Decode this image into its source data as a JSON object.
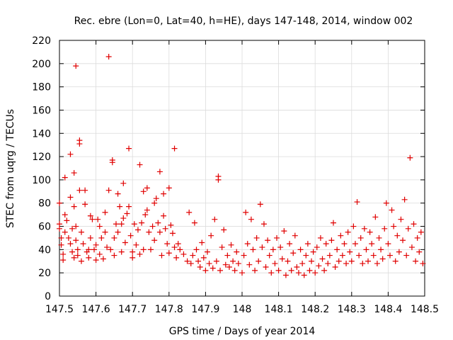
{
  "chart_data": {
    "type": "scatter",
    "title": "Rec. ebre (Lon=0, Lat=40, h=HE), days 147-148, 2014, window 002",
    "xlabel": "GPS time / Days of year 2014",
    "ylabel": "STEC from uqrg / TECUs",
    "xlim": [
      147.5,
      148.5
    ],
    "ylim": [
      0,
      220
    ],
    "xticks": [
      "147.5",
      "147.6",
      "147.7",
      "147.8",
      "147.9",
      "148",
      "148.1",
      "148.2",
      "148.3",
      "148.4",
      "148.5"
    ],
    "yticks": [
      "0",
      "20",
      "40",
      "60",
      "80",
      "100",
      "120",
      "140",
      "160",
      "180",
      "200",
      "220"
    ],
    "marker": "+",
    "color": "#e00000",
    "series": [
      {
        "name": "STEC",
        "points": [
          [
            147.5,
            80
          ],
          [
            147.5,
            58
          ],
          [
            147.5,
            62
          ],
          [
            147.505,
            50
          ],
          [
            147.505,
            44
          ],
          [
            147.51,
            31
          ],
          [
            147.51,
            36
          ],
          [
            147.515,
            55
          ],
          [
            147.515,
            102
          ],
          [
            147.515,
            70
          ],
          [
            147.52,
            65
          ],
          [
            147.525,
            50
          ],
          [
            147.53,
            122
          ],
          [
            147.53,
            85
          ],
          [
            147.53,
            45
          ],
          [
            147.535,
            38
          ],
          [
            147.535,
            58
          ],
          [
            147.54,
            33
          ],
          [
            147.54,
            106
          ],
          [
            147.54,
            77
          ],
          [
            147.545,
            198
          ],
          [
            147.545,
            60
          ],
          [
            147.545,
            48
          ],
          [
            147.55,
            40
          ],
          [
            147.55,
            35
          ],
          [
            147.555,
            134
          ],
          [
            147.555,
            131
          ],
          [
            147.555,
            91
          ],
          [
            147.56,
            30
          ],
          [
            147.56,
            55
          ],
          [
            147.565,
            45
          ],
          [
            147.57,
            91
          ],
          [
            147.57,
            79
          ],
          [
            147.575,
            38
          ],
          [
            147.58,
            40
          ],
          [
            147.58,
            33
          ],
          [
            147.585,
            69
          ],
          [
            147.585,
            50
          ],
          [
            147.59,
            66
          ],
          [
            147.595,
            40
          ],
          [
            147.6,
            44
          ],
          [
            147.6,
            31
          ],
          [
            147.605,
            66
          ],
          [
            147.61,
            36
          ],
          [
            147.61,
            60
          ],
          [
            147.615,
            50
          ],
          [
            147.62,
            32
          ],
          [
            147.625,
            72
          ],
          [
            147.625,
            55
          ],
          [
            147.63,
            42
          ],
          [
            147.635,
            206
          ],
          [
            147.635,
            91
          ],
          [
            147.64,
            40
          ],
          [
            147.645,
            117
          ],
          [
            147.645,
            115
          ],
          [
            147.65,
            35
          ],
          [
            147.65,
            50
          ],
          [
            147.655,
            62
          ],
          [
            147.66,
            88
          ],
          [
            147.66,
            55
          ],
          [
            147.665,
            77
          ],
          [
            147.67,
            38
          ],
          [
            147.67,
            62
          ],
          [
            147.675,
            97
          ],
          [
            147.675,
            67
          ],
          [
            147.68,
            46
          ],
          [
            147.685,
            71
          ],
          [
            147.69,
            127
          ],
          [
            147.69,
            77
          ],
          [
            147.695,
            52
          ],
          [
            147.7,
            38
          ],
          [
            147.7,
            33
          ],
          [
            147.705,
            62
          ],
          [
            147.71,
            44
          ],
          [
            147.715,
            57
          ],
          [
            147.72,
            113
          ],
          [
            147.72,
            36
          ],
          [
            147.725,
            63
          ],
          [
            147.73,
            90
          ],
          [
            147.73,
            40
          ],
          [
            147.735,
            70
          ],
          [
            147.74,
            93
          ],
          [
            147.74,
            74
          ],
          [
            147.745,
            55
          ],
          [
            147.75,
            40
          ],
          [
            147.755,
            60
          ],
          [
            147.76,
            80
          ],
          [
            147.76,
            48
          ],
          [
            147.765,
            84
          ],
          [
            147.77,
            63
          ],
          [
            147.775,
            107
          ],
          [
            147.775,
            55
          ],
          [
            147.78,
            35
          ],
          [
            147.785,
            88
          ],
          [
            147.785,
            69
          ],
          [
            147.79,
            58
          ],
          [
            147.795,
            45
          ],
          [
            147.8,
            93
          ],
          [
            147.8,
            37
          ],
          [
            147.805,
            61
          ],
          [
            147.81,
            54
          ],
          [
            147.815,
            127
          ],
          [
            147.815,
            42
          ],
          [
            147.82,
            33
          ],
          [
            147.825,
            45
          ],
          [
            147.83,
            40
          ],
          [
            147.84,
            36
          ],
          [
            147.85,
            30
          ],
          [
            147.855,
            72
          ],
          [
            147.86,
            28
          ],
          [
            147.865,
            35
          ],
          [
            147.87,
            63
          ],
          [
            147.875,
            40
          ],
          [
            147.88,
            30
          ],
          [
            147.885,
            25
          ],
          [
            147.89,
            46
          ],
          [
            147.895,
            33
          ],
          [
            147.9,
            22
          ],
          [
            147.905,
            38
          ],
          [
            147.91,
            28
          ],
          [
            147.915,
            52
          ],
          [
            147.92,
            24
          ],
          [
            147.925,
            66
          ],
          [
            147.93,
            30
          ],
          [
            147.935,
            103
          ],
          [
            147.935,
            100
          ],
          [
            147.94,
            22
          ],
          [
            147.945,
            42
          ],
          [
            147.95,
            57
          ],
          [
            147.955,
            27
          ],
          [
            147.96,
            35
          ],
          [
            147.965,
            25
          ],
          [
            147.97,
            44
          ],
          [
            147.975,
            30
          ],
          [
            147.98,
            22
          ],
          [
            147.985,
            38
          ],
          [
            147.99,
            28
          ],
          [
            148.0,
            20
          ],
          [
            148.005,
            35
          ],
          [
            148.01,
            72
          ],
          [
            148.015,
            45
          ],
          [
            148.02,
            27
          ],
          [
            148.025,
            66
          ],
          [
            148.03,
            40
          ],
          [
            148.035,
            22
          ],
          [
            148.04,
            50
          ],
          [
            148.045,
            30
          ],
          [
            148.05,
            79
          ],
          [
            148.055,
            42
          ],
          [
            148.06,
            62
          ],
          [
            148.065,
            25
          ],
          [
            148.07,
            48
          ],
          [
            148.075,
            35
          ],
          [
            148.08,
            20
          ],
          [
            148.085,
            40
          ],
          [
            148.09,
            28
          ],
          [
            148.095,
            50
          ],
          [
            148.1,
            22
          ],
          [
            148.105,
            42
          ],
          [
            148.11,
            32
          ],
          [
            148.115,
            56
          ],
          [
            148.12,
            18
          ],
          [
            148.125,
            30
          ],
          [
            148.13,
            45
          ],
          [
            148.135,
            22
          ],
          [
            148.14,
            37
          ],
          [
            148.145,
            52
          ],
          [
            148.15,
            25
          ],
          [
            148.155,
            20
          ],
          [
            148.16,
            40
          ],
          [
            148.165,
            28
          ],
          [
            148.17,
            18
          ],
          [
            148.175,
            35
          ],
          [
            148.18,
            45
          ],
          [
            148.185,
            22
          ],
          [
            148.19,
            30
          ],
          [
            148.195,
            38
          ],
          [
            148.2,
            20
          ],
          [
            148.205,
            42
          ],
          [
            148.21,
            26
          ],
          [
            148.215,
            50
          ],
          [
            148.22,
            32
          ],
          [
            148.225,
            22
          ],
          [
            148.23,
            45
          ],
          [
            148.235,
            28
          ],
          [
            148.24,
            35
          ],
          [
            148.245,
            48
          ],
          [
            148.25,
            63
          ],
          [
            148.255,
            25
          ],
          [
            148.26,
            40
          ],
          [
            148.265,
            30
          ],
          [
            148.27,
            52
          ],
          [
            148.275,
            35
          ],
          [
            148.28,
            45
          ],
          [
            148.285,
            28
          ],
          [
            148.29,
            55
          ],
          [
            148.295,
            38
          ],
          [
            148.3,
            30
          ],
          [
            148.305,
            60
          ],
          [
            148.31,
            45
          ],
          [
            148.315,
            81
          ],
          [
            148.32,
            35
          ],
          [
            148.325,
            50
          ],
          [
            148.33,
            28
          ],
          [
            148.335,
            58
          ],
          [
            148.34,
            40
          ],
          [
            148.345,
            30
          ],
          [
            148.35,
            55
          ],
          [
            148.355,
            45
          ],
          [
            148.36,
            35
          ],
          [
            148.365,
            68
          ],
          [
            148.37,
            28
          ],
          [
            148.375,
            50
          ],
          [
            148.38,
            40
          ],
          [
            148.385,
            32
          ],
          [
            148.39,
            58
          ],
          [
            148.395,
            80
          ],
          [
            148.4,
            45
          ],
          [
            148.405,
            35
          ],
          [
            148.41,
            74
          ],
          [
            148.415,
            60
          ],
          [
            148.42,
            30
          ],
          [
            148.425,
            52
          ],
          [
            148.43,
            38
          ],
          [
            148.435,
            66
          ],
          [
            148.44,
            48
          ],
          [
            148.445,
            83
          ],
          [
            148.45,
            35
          ],
          [
            148.455,
            58
          ],
          [
            148.46,
            119
          ],
          [
            148.465,
            42
          ],
          [
            148.47,
            62
          ],
          [
            148.475,
            30
          ],
          [
            148.48,
            50
          ],
          [
            148.485,
            38
          ],
          [
            148.49,
            55
          ],
          [
            148.495,
            28
          ]
        ]
      }
    ]
  }
}
